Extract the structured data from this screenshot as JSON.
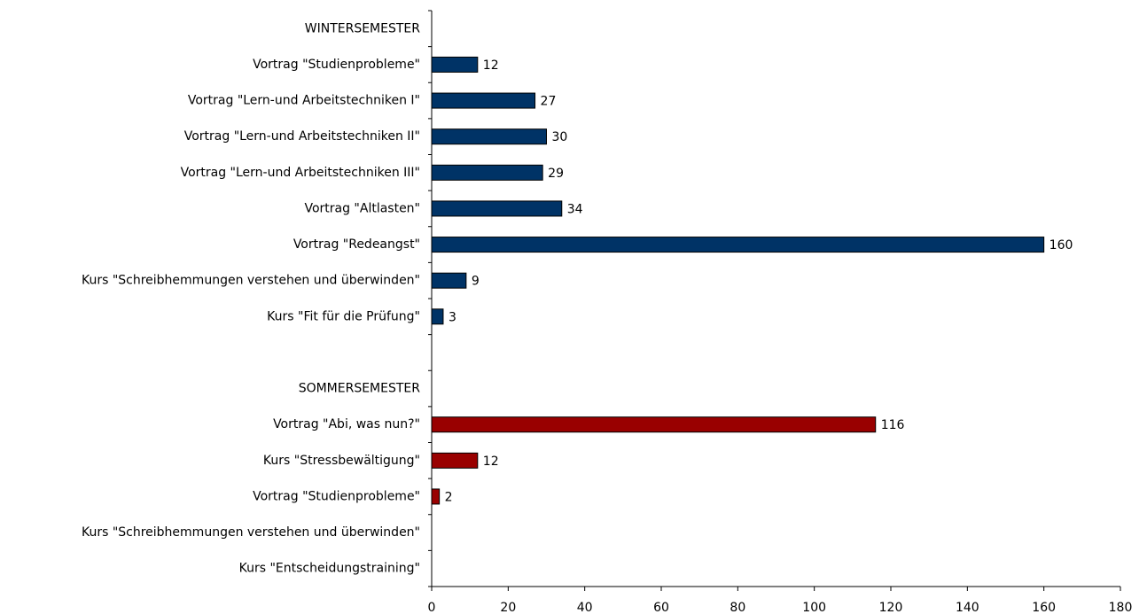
{
  "chart_data": {
    "type": "barh",
    "categories": [
      "WINTERSEMESTER",
      "Vortrag \"Studienprobleme\"",
      "Vortrag \"Lern-und Arbeitstechniken I\"",
      "Vortrag \"Lern-und Arbeitstechniken II\"",
      "Vortrag \"Lern-und Arbeitstechniken III\"",
      "Vortrag \"Altlasten\"",
      "Vortrag \"Redeangst\"",
      "Kurs \"Schreibhemmungen verstehen und überwinden\"",
      "Kurs \"Fit für die Prüfung\"",
      null,
      "SOMMERSEMESTER",
      "Vortrag \"Abi, was nun?\"",
      "Kurs \"Stressbewältigung\"",
      "Vortrag \"Studienprobleme\"",
      "Kurs \"Schreibhemmungen verstehen und überwinden\"",
      "Kurs \"Entscheidungstraining\""
    ],
    "values": [
      null,
      12,
      27,
      30,
      29,
      34,
      160,
      9,
      3,
      null,
      null,
      116,
      12,
      2,
      null,
      null
    ],
    "colors": [
      null,
      "#003366",
      "#003366",
      "#003366",
      "#003366",
      "#003366",
      "#003366",
      "#003366",
      "#003366",
      null,
      null,
      "#990000",
      "#990000",
      "#990000",
      null,
      null
    ],
    "xlim": [
      0,
      180
    ],
    "xticks": [
      0,
      20,
      40,
      60,
      80,
      100,
      120,
      140,
      160,
      180
    ]
  }
}
